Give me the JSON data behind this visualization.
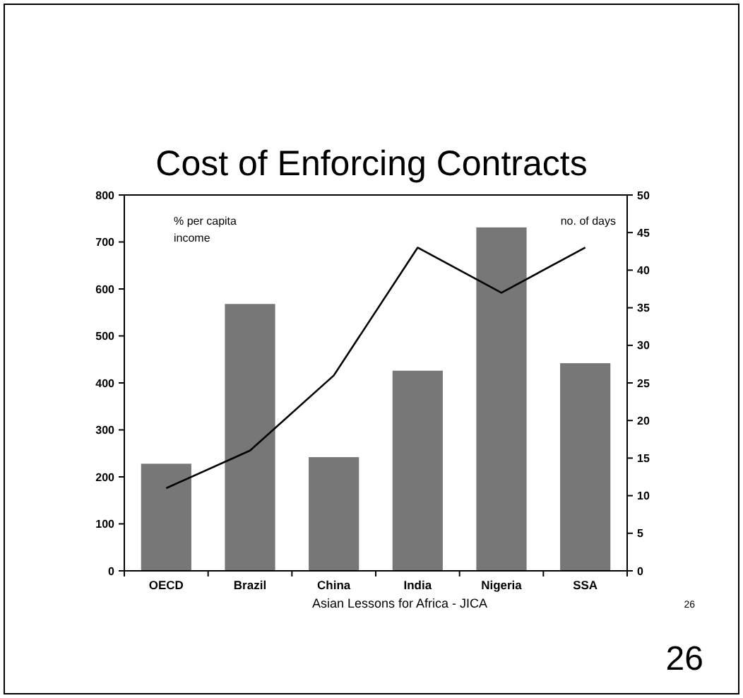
{
  "chart_data": {
    "type": "bar",
    "title": "Cost of Enforcing Contracts",
    "ylabel": "% per capita income",
    "y2label": "no. of days",
    "categories": [
      "OECD",
      "Brazil",
      "China",
      "India",
      "Nigeria",
      "SSA"
    ],
    "series": [
      {
        "color": "#777777",
        "values": [
          228,
          568,
          242,
          426,
          731,
          442
        ]
      },
      {
        "type": "line",
        "axis": "y2",
        "color": "#000000",
        "values": [
          11,
          16,
          26,
          43,
          37,
          43
        ]
      }
    ],
    "ylim": [
      0,
      800
    ],
    "yticks": [
      0,
      100,
      200,
      300,
      400,
      500,
      600,
      700,
      800
    ],
    "y2lim": [
      0,
      50
    ],
    "y2ticks": [
      0,
      5,
      10,
      15,
      20,
      25,
      30,
      35,
      40,
      45,
      50
    ],
    "marker": "none",
    "line_style": "solid",
    "grid": false,
    "annotations": [
      "Asian Lessons for Africa - JICA",
      "26",
      "26"
    ]
  }
}
